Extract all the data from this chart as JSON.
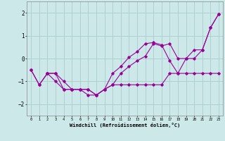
{
  "xlabel": "Windchill (Refroidissement éolien,°C)",
  "background_color": "#cce8e8",
  "grid_color": "#aacccc",
  "line_color": "#990099",
  "xlim": [
    -0.5,
    23.5
  ],
  "ylim": [
    -2.5,
    2.5
  ],
  "yticks": [
    -2,
    -1,
    0,
    1,
    2
  ],
  "xticks": [
    0,
    1,
    2,
    3,
    4,
    5,
    6,
    7,
    8,
    9,
    10,
    11,
    12,
    13,
    14,
    15,
    16,
    17,
    18,
    19,
    20,
    21,
    22,
    23
  ],
  "line1_x": [
    0,
    1,
    2,
    3,
    4,
    5,
    6,
    7,
    8,
    9,
    10,
    11,
    12,
    13,
    14,
    15,
    16,
    17,
    18,
    19,
    20,
    21,
    22,
    23
  ],
  "line1_y": [
    -0.5,
    -1.15,
    -0.65,
    -0.65,
    -1.35,
    -1.35,
    -1.35,
    -1.35,
    -1.6,
    -1.35,
    -1.15,
    -0.65,
    -0.35,
    -0.1,
    0.1,
    0.65,
    0.55,
    0.65,
    0.0,
    0.0,
    0.0,
    0.38,
    1.35,
    1.95
  ],
  "line2_x": [
    2,
    3,
    4,
    5,
    6,
    7,
    8,
    9,
    10,
    11,
    12,
    13,
    14,
    15,
    16,
    17,
    18,
    19,
    20,
    21,
    22,
    23
  ],
  "line2_y": [
    -0.65,
    -0.65,
    -1.0,
    -1.35,
    -1.35,
    -1.35,
    -1.6,
    -1.35,
    -1.15,
    -1.15,
    -1.15,
    -1.15,
    -1.15,
    -1.15,
    -1.15,
    -0.65,
    -0.65,
    -0.65,
    -0.65,
    -0.65,
    -0.65,
    -0.65
  ],
  "line3_x": [
    0,
    1,
    2,
    3,
    4,
    5,
    6,
    7,
    8,
    9,
    10,
    11,
    12,
    13,
    14,
    15,
    16,
    17,
    18,
    19,
    20,
    21,
    22,
    23
  ],
  "line3_y": [
    -0.5,
    -1.15,
    -0.65,
    -1.0,
    -1.35,
    -1.35,
    -1.35,
    -1.6,
    -1.6,
    -1.35,
    -0.65,
    -0.35,
    0.05,
    0.3,
    0.65,
    0.7,
    0.6,
    -0.1,
    -0.65,
    0.0,
    0.38,
    0.38,
    1.35,
    1.95
  ],
  "xlabel_fontsize": 5.0,
  "ytick_fontsize": 5.5,
  "xtick_fontsize": 3.8
}
